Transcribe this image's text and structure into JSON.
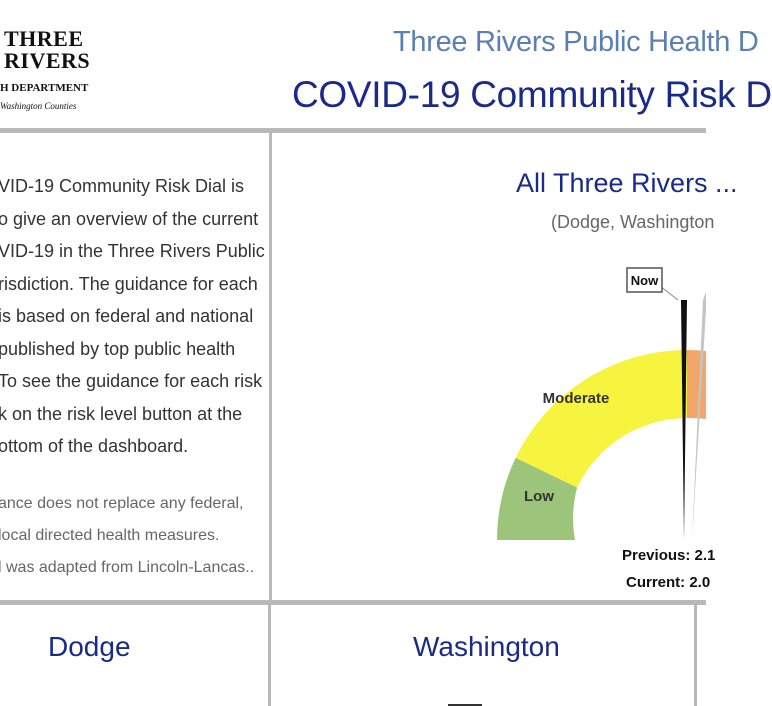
{
  "header": {
    "logo": {
      "line1": "THREE",
      "line2": "RIVERS",
      "line3": "H DEPARTMENT",
      "line4": "Washington Counties"
    },
    "org_name": "Three Rivers Public Health D",
    "dashboard_title": "COVID-19 Community Risk D"
  },
  "intro": {
    "lines": [
      "VID-19 Community Risk Dial is",
      "o give an overview of the current",
      "VID-19 in the Three Rivers Public",
      "risdiction. The guidance for each",
      "is based on federal and national",
      " published by top public health",
      "To see the guidance for each risk",
      "k on the risk level button at the",
      "ottom of the dashboard."
    ],
    "disclaimer": [
      "ance does not replace any federal,",
      " local directed health measures.",
      "l was adapted from Lincoln-Lancas.."
    ]
  },
  "dial": {
    "title": "All Three Rivers ...",
    "subtitle": "(Dodge, Washington",
    "now_label": "Now",
    "segments": [
      {
        "label": "Low",
        "color": "#9cc47a"
      },
      {
        "label": "Moderate",
        "color": "#f7f440"
      },
      {
        "label": "",
        "color": "#f2a66b"
      }
    ],
    "previous_text": "Previous: 2.1",
    "current_text": "Current: 2.0"
  },
  "counties": [
    "Dodge",
    "Washington"
  ]
}
